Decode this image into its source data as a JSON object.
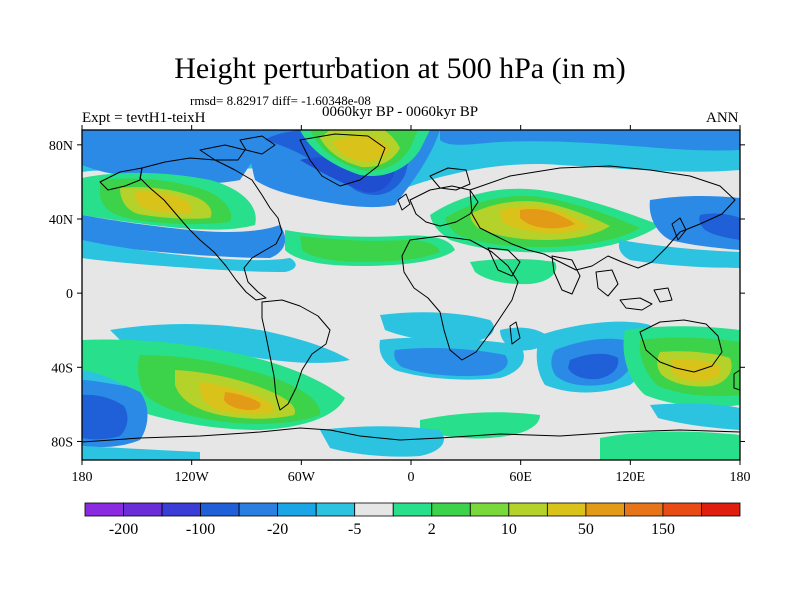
{
  "title": "Height perturbation at 500 hPa (in m)",
  "stats": "rmsd= 8.82917 diff= -1.60348e-08",
  "period": "0060kyr BP - 0060kyr BP",
  "experiment": "Expt = tevtH1-teixH",
  "season": "ANN",
  "lat_labels": [
    "80N",
    "40N",
    "0",
    "40S",
    "80S"
  ],
  "lat_values": [
    80,
    40,
    0,
    -40,
    -80
  ],
  "lon_labels": [
    "180",
    "120W",
    "60W",
    "0",
    "60E",
    "120E",
    "180"
  ],
  "lon_values": [
    -180,
    -120,
    -60,
    0,
    60,
    120,
    180
  ],
  "colorbar": {
    "labels": [
      "-200",
      "-100",
      "-20",
      "-5",
      "2",
      "10",
      "50",
      "150"
    ],
    "colors": [
      "#8a2be2",
      "#6a2ed8",
      "#3b3ed6",
      "#1f5fd8",
      "#2b7fe0",
      "#1aa6e6",
      "#2bc3e0",
      "#e6e6e6",
      "#28e08c",
      "#3cd24a",
      "#7ad93a",
      "#b4d22a",
      "#d9c21a",
      "#e39a16",
      "#e8741a",
      "#e84c14",
      "#e01e0e"
    ]
  },
  "palette": {
    "white": "#ffffff",
    "gray": "#e6e6e6",
    "cyan": "#2bc3e0",
    "lblue": "#2b8ae6",
    "blue": "#1f5fd8",
    "dblue": "#1f4fd0",
    "teal": "#28e08c",
    "green": "#3cd24a",
    "ygreen": "#b4d22a",
    "yellow": "#d9c21a",
    "orange": "#e39a16"
  }
}
